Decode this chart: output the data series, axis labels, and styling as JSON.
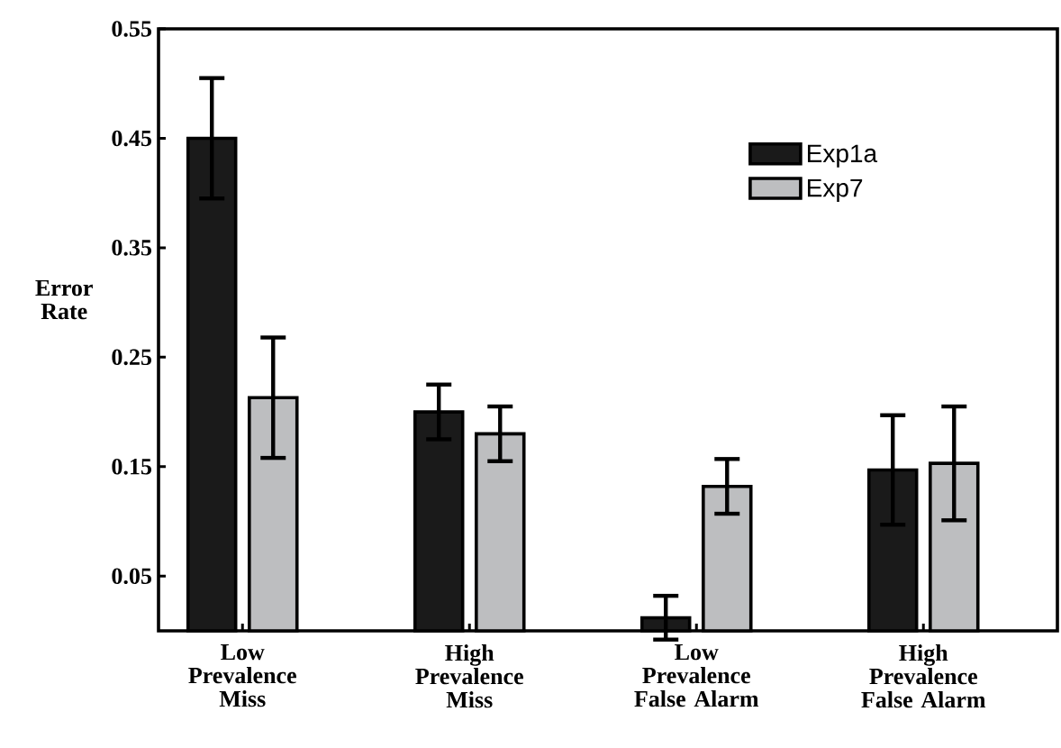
{
  "chart_data": {
    "type": "bar",
    "categories": [
      "Low Prevalence Miss",
      "High Prevalence Miss",
      "Low Prevalence False Alarm",
      "High Prevalence False Alarm"
    ],
    "ylabel": "Error Rate",
    "ylim": [
      0,
      0.55
    ],
    "yticks": [
      0.05,
      0.15,
      0.25,
      0.35,
      0.45,
      0.55
    ],
    "legend": "top right",
    "series": [
      {
        "name": "Exp1a",
        "color": "#1a1a1a",
        "values": [
          0.45,
          0.2,
          0.012,
          0.147
        ],
        "errors": [
          0.055,
          0.025,
          0.02,
          0.05
        ]
      },
      {
        "name": "Exp7",
        "color": "#bdbec0",
        "values": [
          0.213,
          0.18,
          0.132,
          0.153
        ],
        "errors": [
          0.055,
          0.025,
          0.025,
          0.052
        ]
      }
    ]
  }
}
